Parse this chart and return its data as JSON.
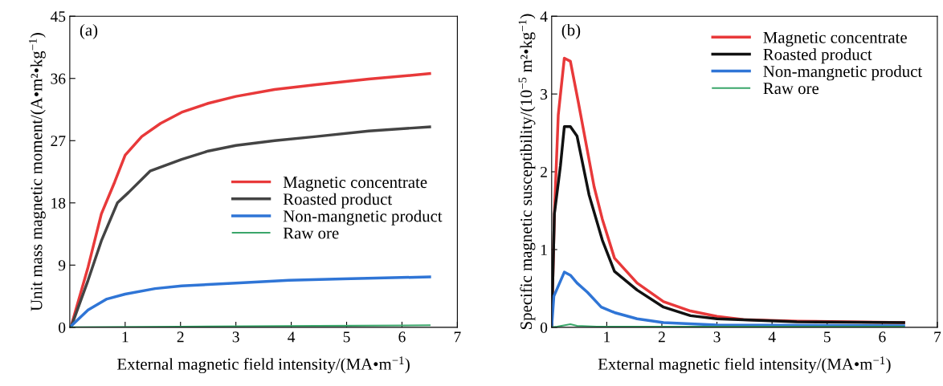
{
  "chart_data": [
    {
      "type": "line",
      "xlabel": "External magnetic field intensity/(MA•m$^{−1}$)",
      "ylabel": "Unit mass magnetic moment/(A•m²•kg$^{−1}$)",
      "annotations": [
        "(a)"
      ],
      "xlim": [
        0,
        7
      ],
      "ylim": [
        0,
        45
      ],
      "xticks": [
        1,
        2,
        3,
        4,
        5,
        6,
        7
      ],
      "yticks": [
        0,
        9,
        18,
        27,
        36,
        45
      ],
      "grid": false,
      "legend": "right",
      "marker": "none",
      "line_style": "solid",
      "series": [
        {
          "name": "Magnetic concentrate",
          "color": "#e8393a",
          "x": [
            0.04,
            0.33,
            0.57,
            0.81,
            1.0,
            1.3,
            1.64,
            2.02,
            2.5,
            3.0,
            3.7,
            4.45,
            5.4,
            6.5
          ],
          "values": [
            0.6,
            8.7,
            16.4,
            21,
            24.9,
            27.6,
            29.5,
            31.1,
            32.4,
            33.4,
            34.4,
            35.1,
            35.9,
            36.7
          ]
        },
        {
          "name": "Roasted product",
          "color": "#444444",
          "x": [
            0.04,
            0.33,
            0.57,
            0.86,
            1.06,
            1.45,
            2.02,
            2.5,
            3.0,
            3.7,
            4.45,
            5.4,
            6.5
          ],
          "values": [
            0.4,
            6.8,
            12.5,
            18.0,
            19.5,
            22.6,
            24.3,
            25.5,
            26.3,
            27.0,
            27.6,
            28.4,
            29.0
          ]
        },
        {
          "name": "Non-mangnetic product",
          "color": "#2f75d6",
          "x": [
            0.0,
            0.33,
            0.67,
            1.0,
            1.54,
            2.02,
            3.0,
            3.96,
            4.93,
            6.5
          ],
          "values": [
            0,
            2.5,
            4.1,
            4.8,
            5.6,
            6.0,
            6.4,
            6.8,
            7.0,
            7.3
          ]
        },
        {
          "name": "Raw ore",
          "color": "#3aa66a",
          "x": [
            0.0,
            2.0,
            4.45,
            6.5
          ],
          "values": [
            0,
            0.1,
            0.2,
            0.3
          ]
        }
      ]
    },
    {
      "type": "line",
      "xlabel": "External magnetic field intensity/(MA•m$^{−1}$)",
      "ylabel": "Specific magnetic susceptibility/(10$^{−5}$ m²•kg$^{−1}$)",
      "annotations": [
        "(b)"
      ],
      "xlim": [
        0,
        7
      ],
      "ylim": [
        0,
        4
      ],
      "xticks": [
        1,
        2,
        3,
        4,
        5,
        6,
        7
      ],
      "yticks": [
        0,
        1,
        2,
        3,
        4
      ],
      "grid": false,
      "legend": "top right",
      "marker": "none",
      "line_style": "solid",
      "series": [
        {
          "name": "Magnetic concentrate",
          "color": "#e8393a",
          "x": [
            0,
            0.05,
            0.12,
            0.23,
            0.34,
            0.48,
            0.77,
            0.92,
            1.14,
            1.55,
            2.03,
            2.52,
            3.0,
            3.48,
            4.45,
            6.39
          ],
          "values": [
            0,
            1.46,
            2.73,
            3.46,
            3.42,
            2.91,
            1.81,
            1.39,
            0.89,
            0.57,
            0.33,
            0.21,
            0.14,
            0.1,
            0.08,
            0.06
          ]
        },
        {
          "name": "Roasted product",
          "color": "#111111",
          "x": [
            0,
            0.05,
            0.16,
            0.23,
            0.34,
            0.46,
            0.68,
            0.92,
            1.14,
            1.55,
            2.03,
            2.52,
            3.0,
            4.45,
            6.39
          ],
          "values": [
            0,
            1.46,
            2.08,
            2.58,
            2.58,
            2.46,
            1.7,
            1.12,
            0.72,
            0.48,
            0.26,
            0.15,
            0.11,
            0.07,
            0.06
          ]
        },
        {
          "name": "Non-mangnetic product",
          "color": "#2f75d6",
          "x": [
            0,
            0.04,
            0.23,
            0.34,
            0.46,
            0.65,
            0.9,
            1.14,
            1.55,
            2.03,
            3.0,
            6.39
          ],
          "values": [
            0,
            0.4,
            0.71,
            0.67,
            0.57,
            0.45,
            0.26,
            0.19,
            0.11,
            0.06,
            0.03,
            0.02
          ]
        },
        {
          "name": "Raw ore",
          "color": "#3aa66a",
          "x": [
            0,
            0.1,
            0.34,
            0.46,
            0.82,
            6.39
          ],
          "values": [
            0,
            0.01,
            0.04,
            0.02,
            0.01,
            0.01
          ]
        }
      ]
    }
  ]
}
